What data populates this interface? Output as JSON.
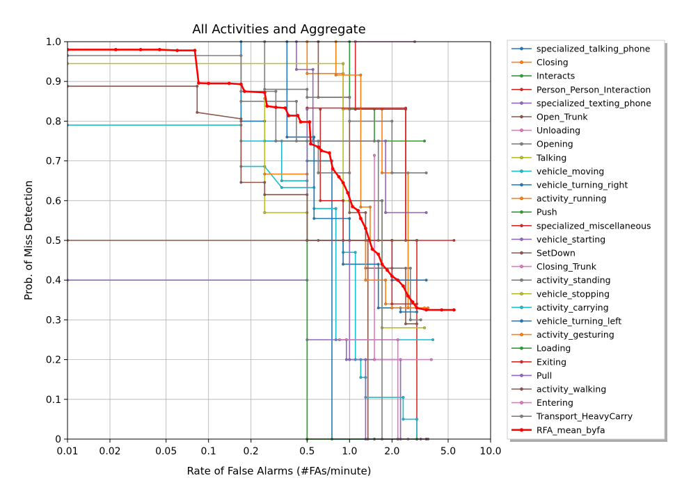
{
  "chart_data": {
    "type": "line",
    "title": "All Activities and Aggregate",
    "xlabel": "Rate of False Alarms (#FAs/minute)",
    "ylabel": "Prob. of Miss Detection",
    "x_scale": "log",
    "xlim": [
      0.01,
      10.0
    ],
    "ylim": [
      0,
      1.0
    ],
    "grid": true,
    "legend_position": "outside-right",
    "x_ticks": [
      {
        "v": 0.01,
        "label": "0.01"
      },
      {
        "v": 0.02,
        "label": "0.02"
      },
      {
        "v": 0.05,
        "label": "0.05"
      },
      {
        "v": 0.1,
        "label": "0.1"
      },
      {
        "v": 0.2,
        "label": "0.2"
      },
      {
        "v": 0.5,
        "label": "0.5"
      },
      {
        "v": 1.0,
        "label": "1.0"
      },
      {
        "v": 2.0,
        "label": "2.0"
      },
      {
        "v": 5.0,
        "label": "5.0"
      },
      {
        "v": 10.0,
        "label": "10.0"
      }
    ],
    "y_ticks": [
      {
        "v": 0,
        "label": "0"
      },
      {
        "v": 0.1,
        "label": "0.1"
      },
      {
        "v": 0.2,
        "label": "0.2"
      },
      {
        "v": 0.3,
        "label": "0.3"
      },
      {
        "v": 0.4,
        "label": "0.4"
      },
      {
        "v": 0.5,
        "label": "0.5"
      },
      {
        "v": 0.6,
        "label": "0.6"
      },
      {
        "v": 0.7,
        "label": "0.7"
      },
      {
        "v": 0.8,
        "label": "0.8"
      },
      {
        "v": 0.9,
        "label": "0.9"
      },
      {
        "v": 1.0,
        "label": "1.0"
      }
    ],
    "series": [
      {
        "name": "specialized_talking_phone",
        "color": "#1f77b4",
        "points": [
          [
            0.17,
            1.0
          ],
          [
            0.17,
            0.8
          ],
          [
            0.25,
            0.8
          ],
          [
            0.25,
            0.75
          ],
          [
            0.5,
            0.75
          ],
          [
            0.5,
            0.7
          ],
          [
            0.75,
            0.7
          ],
          [
            0.75,
            0.0
          ],
          [
            1.5,
            0.0
          ]
        ]
      },
      {
        "name": "Closing",
        "color": "#ff7f0e",
        "points": [
          [
            0.5,
            1.0
          ],
          [
            0.5,
            0.92
          ],
          [
            0.9,
            0.92
          ],
          [
            0.9,
            0.83
          ],
          [
            1.7,
            0.83
          ],
          [
            1.7,
            0.67
          ],
          [
            2.6,
            0.67
          ],
          [
            2.6,
            0.33
          ],
          [
            3.4,
            0.33
          ]
        ]
      },
      {
        "name": "Interacts",
        "color": "#2ca02c",
        "points": [
          [
            1.0,
            1.0
          ],
          [
            1.0,
            0.83
          ],
          [
            1.5,
            0.83
          ],
          [
            1.5,
            0.75
          ],
          [
            3.4,
            0.75
          ]
        ]
      },
      {
        "name": "Person_Person_Interaction",
        "color": "#d62728",
        "points": [
          [
            1.1,
            1.0
          ],
          [
            1.1,
            0.83
          ],
          [
            2.5,
            0.83
          ],
          [
            2.5,
            0.5
          ],
          [
            3.0,
            0.5
          ],
          [
            3.0,
            0.0
          ],
          [
            3.5,
            0.0
          ]
        ]
      },
      {
        "name": "specialized_texting_phone",
        "color": "#9467bd",
        "points": [
          [
            0.42,
            1.0
          ],
          [
            0.42,
            0.93
          ],
          [
            0.55,
            0.93
          ],
          [
            0.55,
            0.75
          ],
          [
            1.8,
            0.75
          ],
          [
            1.8,
            0.57
          ],
          [
            3.5,
            0.57
          ]
        ]
      },
      {
        "name": "Open_Trunk",
        "color": "#8c564b",
        "points": [
          [
            0.6,
            1.0
          ],
          [
            0.6,
            0.86
          ],
          [
            1.0,
            0.86
          ],
          [
            1.0,
            0.57
          ],
          [
            1.3,
            0.57
          ],
          [
            1.3,
            0.43
          ],
          [
            2.5,
            0.43
          ],
          [
            2.5,
            0.29
          ],
          [
            3.0,
            0.29
          ]
        ]
      },
      {
        "name": "Unloading",
        "color": "#e377c2",
        "points": [
          [
            1.1,
            1.0
          ],
          [
            2.9,
            1.0
          ]
        ]
      },
      {
        "name": "Opening",
        "color": "#7f7f7f",
        "points": [
          [
            0.25,
            1.0
          ],
          [
            0.25,
            0.88
          ],
          [
            0.5,
            0.88
          ],
          [
            0.5,
            0.86
          ],
          [
            1.0,
            0.86
          ],
          [
            1.0,
            0.8
          ],
          [
            2.0,
            0.8
          ],
          [
            2.0,
            0.67
          ],
          [
            3.5,
            0.67
          ]
        ]
      },
      {
        "name": "Talking",
        "color": "#bcbd22",
        "points": [
          [
            0.01,
            0.945
          ],
          [
            0.9,
            0.945
          ],
          [
            0.9,
            0.6
          ],
          [
            1.7,
            0.6
          ],
          [
            1.7,
            0.28
          ],
          [
            3.4,
            0.28
          ]
        ]
      },
      {
        "name": "vehicle_moving",
        "color": "#17becf",
        "points": [
          [
            0.01,
            0.79
          ],
          [
            0.17,
            0.79
          ],
          [
            0.17,
            0.686
          ],
          [
            0.25,
            0.686
          ],
          [
            0.33,
            0.633
          ],
          [
            0.56,
            0.633
          ],
          [
            0.56,
            0.58
          ],
          [
            0.8,
            0.58
          ],
          [
            0.8,
            0.25
          ],
          [
            3.9,
            0.25
          ]
        ]
      },
      {
        "name": "vehicle_turning_right",
        "color": "#1f77b4",
        "points": [
          [
            0.36,
            1.0
          ],
          [
            0.36,
            0.76
          ],
          [
            0.56,
            0.76
          ],
          [
            0.56,
            0.555
          ],
          [
            1.0,
            0.555
          ],
          [
            1.0,
            0.5
          ],
          [
            2.0,
            0.5
          ],
          [
            2.0,
            0.4
          ],
          [
            3.5,
            0.4
          ]
        ]
      },
      {
        "name": "activity_running",
        "color": "#ff7f0e",
        "points": [
          [
            0.8,
            1.0
          ],
          [
            0.8,
            0.916
          ],
          [
            1.2,
            0.916
          ],
          [
            1.2,
            0.584
          ],
          [
            1.4,
            0.584
          ],
          [
            1.4,
            0.5
          ],
          [
            3.0,
            0.5
          ]
        ]
      },
      {
        "name": "Push",
        "color": "#2ca02c",
        "points": [
          [
            0.5,
            0.833
          ],
          [
            0.5,
            0.0
          ],
          [
            1.5,
            0.0
          ]
        ]
      },
      {
        "name": "specialized_miscellaneous",
        "color": "#d62728",
        "points": [
          [
            0.5,
            0.833
          ],
          [
            2.5,
            0.833
          ],
          [
            2.5,
            0.5
          ],
          [
            5.5,
            0.5
          ]
        ]
      },
      {
        "name": "vehicle_starting",
        "color": "#9467bd",
        "points": [
          [
            0.01,
            0.4
          ],
          [
            0.5,
            0.4
          ],
          [
            0.5,
            0.25
          ],
          [
            0.95,
            0.25
          ],
          [
            0.95,
            0.2
          ],
          [
            2.3,
            0.2
          ],
          [
            2.3,
            0.0
          ],
          [
            3.2,
            0.0
          ]
        ]
      },
      {
        "name": "SetDown",
        "color": "#8c564b",
        "points": [
          [
            0.01,
            0.5
          ],
          [
            1.35,
            0.5
          ],
          [
            1.35,
            0.0
          ],
          [
            2.2,
            0.0
          ]
        ]
      },
      {
        "name": "Closing_Trunk",
        "color": "#e377c2",
        "points": [
          [
            1.5,
            0.714
          ],
          [
            1.5,
            0.2
          ],
          [
            3.8,
            0.2
          ]
        ]
      },
      {
        "name": "activity_standing",
        "color": "#7f7f7f",
        "points": [
          [
            0.17,
            0.85
          ],
          [
            0.42,
            0.85
          ],
          [
            0.42,
            0.75
          ],
          [
            1.6,
            0.75
          ],
          [
            1.6,
            0.5
          ],
          [
            2.0,
            0.5
          ],
          [
            2.0,
            0.43
          ],
          [
            2.7,
            0.43
          ],
          [
            2.7,
            0.3
          ],
          [
            3.2,
            0.3
          ]
        ]
      },
      {
        "name": "vehicle_stopping",
        "color": "#bcbd22",
        "points": [
          [
            0.25,
            0.857
          ],
          [
            0.25,
            0.57
          ],
          [
            0.5,
            0.57
          ],
          [
            0.5,
            0.5
          ],
          [
            3.0,
            0.5
          ]
        ]
      },
      {
        "name": "activity_carrying",
        "color": "#17becf",
        "points": [
          [
            0.17,
            0.75
          ],
          [
            0.33,
            0.75
          ],
          [
            0.33,
            0.65
          ],
          [
            0.5,
            0.65
          ],
          [
            0.5,
            0.5
          ],
          [
            0.9,
            0.5
          ],
          [
            0.9,
            0.47
          ],
          [
            1.1,
            0.47
          ],
          [
            1.1,
            0.2
          ],
          [
            1.2,
            0.2
          ],
          [
            1.2,
            0.155
          ],
          [
            1.3,
            0.155
          ],
          [
            1.3,
            0.105
          ],
          [
            2.4,
            0.105
          ],
          [
            2.4,
            0.05
          ],
          [
            3.0,
            0.05
          ],
          [
            3.0,
            0.0
          ]
        ]
      },
      {
        "name": "vehicle_turning_left",
        "color": "#1f77b4",
        "points": [
          [
            0.6,
            0.5
          ],
          [
            0.9,
            0.5
          ],
          [
            0.9,
            0.44
          ],
          [
            1.6,
            0.44
          ],
          [
            1.6,
            0.33
          ],
          [
            2.3,
            0.33
          ],
          [
            2.3,
            0.32
          ],
          [
            3.0,
            0.32
          ]
        ]
      },
      {
        "name": "activity_gesturing",
        "color": "#ff7f0e",
        "points": [
          [
            0.25,
            0.667
          ],
          [
            0.5,
            0.667
          ],
          [
            0.5,
            0.5
          ],
          [
            1.3,
            0.5
          ],
          [
            1.3,
            0.4
          ],
          [
            1.8,
            0.4
          ],
          [
            1.8,
            0.34
          ],
          [
            2.0,
            0.34
          ],
          [
            2.0,
            0.33
          ],
          [
            3.6,
            0.33
          ]
        ]
      },
      {
        "name": "Loading",
        "color": "#2ca02c",
        "points": [
          [
            0.5,
            0.75
          ],
          [
            0.5,
            0.0
          ],
          [
            3.0,
            0.0
          ]
        ]
      },
      {
        "name": "Exiting",
        "color": "#d62728",
        "points": [
          [
            0.62,
            0.83
          ],
          [
            0.62,
            0.6
          ],
          [
            0.9,
            0.6
          ],
          [
            0.9,
            0.5
          ],
          [
            2.0,
            0.5
          ],
          [
            2.0,
            0.34
          ],
          [
            3.0,
            0.34
          ]
        ]
      },
      {
        "name": "Pull",
        "color": "#9467bd",
        "points": [
          [
            0.5,
            0.83
          ],
          [
            0.5,
            0.5
          ],
          [
            1.0,
            0.5
          ],
          [
            1.0,
            0.2
          ],
          [
            1.3,
            0.2
          ],
          [
            1.3,
            0.0
          ],
          [
            2.2,
            0.0
          ]
        ]
      },
      {
        "name": "activity_walking",
        "color": "#8c564b",
        "points": [
          [
            0.01,
            0.888
          ],
          [
            0.083,
            0.888
          ],
          [
            0.083,
            0.822
          ],
          [
            0.17,
            0.806
          ],
          [
            0.17,
            0.646
          ],
          [
            0.25,
            0.646
          ],
          [
            0.25,
            0.615
          ],
          [
            0.5,
            0.615
          ],
          [
            0.5,
            0.5
          ],
          [
            3.0,
            0.5
          ]
        ]
      },
      {
        "name": "Entering",
        "color": "#e377c2",
        "points": [
          [
            0.85,
            0.25
          ],
          [
            2.2,
            0.25
          ],
          [
            2.2,
            0.0
          ],
          [
            2.6,
            0.0
          ]
        ]
      },
      {
        "name": "Transport_HeavyCarry",
        "color": "#7f7f7f",
        "points": [
          [
            0.01,
            0.965
          ],
          [
            0.17,
            0.965
          ],
          [
            0.17,
            0.875
          ],
          [
            0.3,
            0.875
          ],
          [
            0.3,
            0.75
          ],
          [
            0.6,
            0.75
          ],
          [
            0.6,
            0.67
          ],
          [
            1.0,
            0.67
          ],
          [
            1.0,
            0.6
          ],
          [
            1.7,
            0.6
          ],
          [
            1.7,
            0.0
          ],
          [
            3.6,
            0.0
          ]
        ]
      },
      {
        "name": "RFA_mean_byfa",
        "color": "#ff0000",
        "points": [
          [
            0.01,
            0.98
          ],
          [
            0.022,
            0.98
          ],
          [
            0.033,
            0.98
          ],
          [
            0.045,
            0.98
          ],
          [
            0.06,
            0.978
          ],
          [
            0.08,
            0.978
          ],
          [
            0.085,
            0.896
          ],
          [
            0.1,
            0.895
          ],
          [
            0.14,
            0.895
          ],
          [
            0.17,
            0.893
          ],
          [
            0.18,
            0.875
          ],
          [
            0.25,
            0.872
          ],
          [
            0.26,
            0.838
          ],
          [
            0.3,
            0.835
          ],
          [
            0.35,
            0.833
          ],
          [
            0.37,
            0.814
          ],
          [
            0.43,
            0.814
          ],
          [
            0.45,
            0.798
          ],
          [
            0.52,
            0.798
          ],
          [
            0.53,
            0.743
          ],
          [
            0.6,
            0.735
          ],
          [
            0.63,
            0.726
          ],
          [
            0.72,
            0.72
          ],
          [
            0.76,
            0.68
          ],
          [
            0.84,
            0.66
          ],
          [
            0.9,
            0.645
          ],
          [
            0.97,
            0.62
          ],
          [
            1.05,
            0.585
          ],
          [
            1.15,
            0.575
          ],
          [
            1.2,
            0.555
          ],
          [
            1.3,
            0.53
          ],
          [
            1.45,
            0.478
          ],
          [
            1.6,
            0.465
          ],
          [
            1.7,
            0.44
          ],
          [
            1.85,
            0.425
          ],
          [
            2.0,
            0.41
          ],
          [
            2.2,
            0.4
          ],
          [
            2.4,
            0.385
          ],
          [
            2.6,
            0.36
          ],
          [
            2.8,
            0.345
          ],
          [
            3.0,
            0.33
          ],
          [
            3.5,
            0.325
          ],
          [
            4.5,
            0.325
          ],
          [
            5.5,
            0.325
          ]
        ]
      }
    ]
  }
}
